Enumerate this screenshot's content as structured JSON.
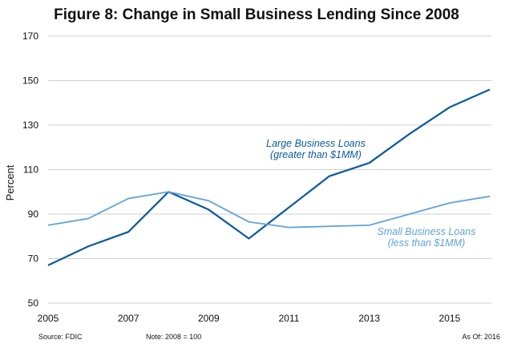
{
  "chart_data": {
    "type": "line",
    "title": "Figure 8: Change in Small Business Lending Since 2008",
    "xlabel": "",
    "ylabel": "Percent",
    "xlim": [
      2005,
      2016
    ],
    "ylim": [
      50,
      170
    ],
    "yticks": [
      50,
      70,
      90,
      110,
      130,
      150,
      170
    ],
    "xticks": [
      2005,
      2007,
      2009,
      2011,
      2013,
      2015
    ],
    "grid": "horizontal",
    "x": [
      2005,
      2006,
      2007,
      2008,
      2009,
      2010,
      2011,
      2012,
      2013,
      2014,
      2015,
      2016
    ],
    "series": [
      {
        "name": "Large Business Loans (greater than $1MM)",
        "label_lines": [
          "Large Business Loans",
          "(greater than $1MM)"
        ],
        "color": "#0a5a9c",
        "values": [
          67,
          75.5,
          82,
          100,
          92,
          79,
          93,
          107,
          113,
          126,
          138,
          146
        ]
      },
      {
        "name": "Small Business Loans (less than $1MM)",
        "label_lines": [
          "Small Business Loans",
          "(less than $1MM)"
        ],
        "color": "#5ea3dc",
        "values": [
          85,
          88,
          97,
          100,
          96,
          86.5,
          84,
          84.5,
          85,
          90,
          95,
          98
        ]
      }
    ],
    "footer": {
      "source": "Source: FDIC",
      "note": "Note: 2008 = 100",
      "as_of": "As Of: 2016"
    }
  }
}
